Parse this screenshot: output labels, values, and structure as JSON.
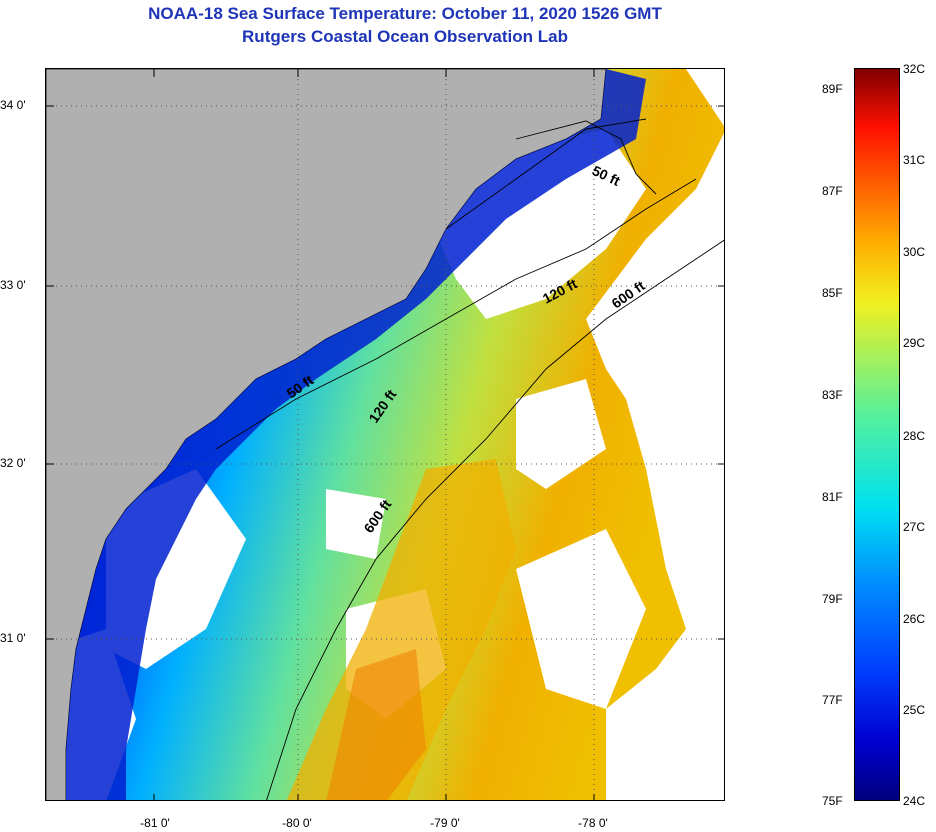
{
  "title": {
    "line1": "NOAA-18 Sea Surface Temperature:  October 11, 2020 1526 GMT",
    "line2": "Rutgers Coastal Ocean Observation Lab"
  },
  "map": {
    "lat_labels": [
      "34 0'",
      "33 0'",
      "32 0'",
      "31 0'"
    ],
    "lon_labels": [
      "-81 0'",
      "-80 0'",
      "-79 0'",
      "-78 0'"
    ],
    "contour_labels": [
      "50 ft",
      "50 ft",
      "120 ft",
      "120 ft",
      "600 ft",
      "600 ft"
    ],
    "colors": {
      "land": "#b0b0b0",
      "cloud": "#ffffff",
      "cold": "#0020d0",
      "warm": "#f0b000"
    }
  },
  "colorbar": {
    "fahrenheit": [
      "89F",
      "87F",
      "85F",
      "83F",
      "81F",
      "79F",
      "77F",
      "75F"
    ],
    "celsius": [
      "32C",
      "31C",
      "30C",
      "29C",
      "28C",
      "27C",
      "26C",
      "25C",
      "24C"
    ]
  }
}
